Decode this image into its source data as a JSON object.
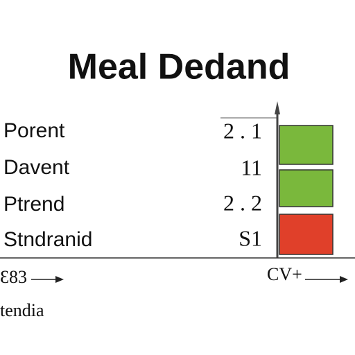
{
  "header": {
    "title": "Meal Dedand"
  },
  "rows": [
    {
      "label": "Porent",
      "value": "2 . 1"
    },
    {
      "label": "Davent",
      "value": "11"
    },
    {
      "label": "Ptrend",
      "value": "2 . 2"
    },
    {
      "label": "Stndranid",
      "value": "S1"
    }
  ],
  "footer": {
    "left": "Ɛ83",
    "right": "CV+",
    "caption": "tendia"
  }
}
